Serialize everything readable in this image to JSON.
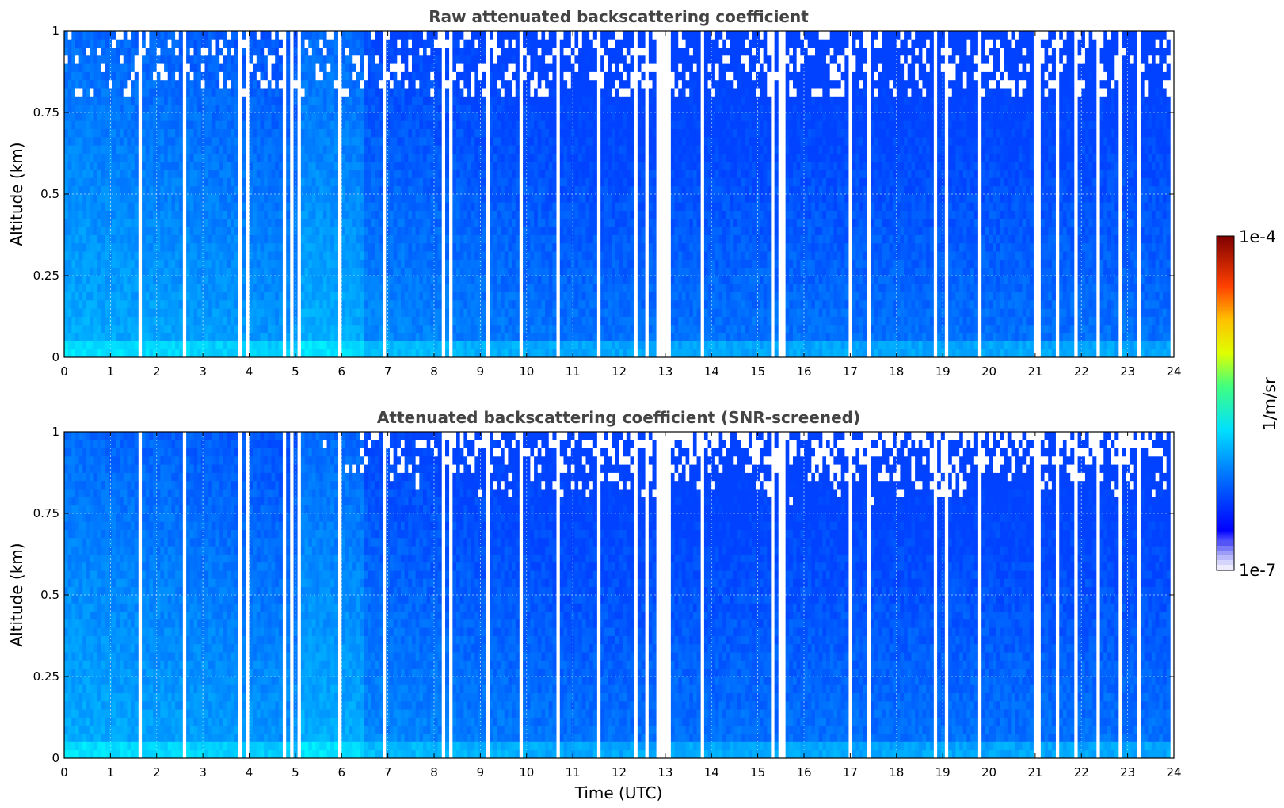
{
  "chart_data": [
    {
      "type": "heatmap",
      "title": "Raw attenuated backscattering coefficient",
      "xlabel": "",
      "ylabel": "Altitude (km)",
      "xlim": [
        0,
        24
      ],
      "ylim": [
        0,
        1
      ],
      "x_ticks": [
        "0",
        "1",
        "2",
        "3",
        "4",
        "5",
        "6",
        "7",
        "8",
        "9",
        "10",
        "11",
        "12",
        "13",
        "14",
        "15",
        "16",
        "17",
        "18",
        "19",
        "20",
        "21",
        "22",
        "23",
        "24"
      ],
      "y_ticks": [
        "0",
        "0.25",
        "0.5",
        "0.75",
        "1"
      ],
      "y_tick_values": [
        0,
        0.25,
        0.5,
        0.75,
        1
      ],
      "grid": true,
      "screened": false
    },
    {
      "type": "heatmap",
      "title": "Attenuated backscattering coefficient (SNR-screened)",
      "xlabel": "Time (UTC)",
      "ylabel": "Altitude (km)",
      "xlim": [
        0,
        24
      ],
      "ylim": [
        0,
        1
      ],
      "x_ticks": [
        "0",
        "1",
        "2",
        "3",
        "4",
        "5",
        "6",
        "7",
        "8",
        "9",
        "10",
        "11",
        "12",
        "13",
        "14",
        "15",
        "16",
        "17",
        "18",
        "19",
        "20",
        "21",
        "22",
        "23",
        "24"
      ],
      "y_ticks": [
        "0",
        "0.25",
        "0.5",
        "0.75",
        "1"
      ],
      "y_tick_values": [
        0,
        0.25,
        0.5,
        0.75,
        1
      ],
      "grid": true,
      "screened": true
    }
  ],
  "colorbar": {
    "label": "1/m/sr",
    "max_label": "1e-4",
    "min_label": "1e-7",
    "colormap": "jet",
    "scale": "log"
  }
}
